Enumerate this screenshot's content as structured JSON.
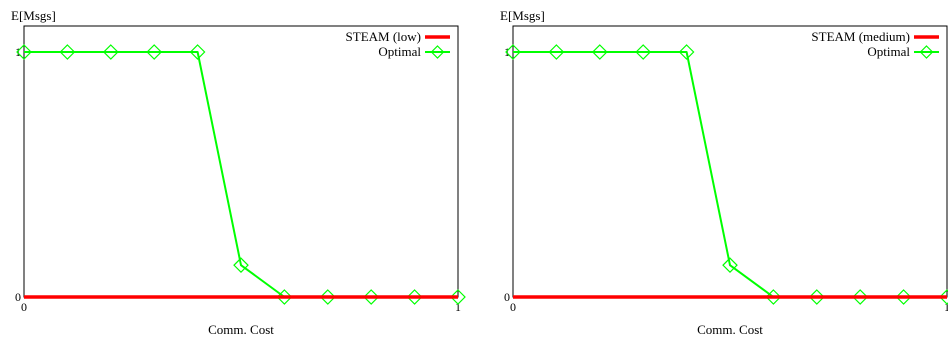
{
  "chart_data": [
    {
      "type": "line",
      "ylabel": "E[Msgs]",
      "xlabel": "Comm. Cost",
      "xlim": [
        0,
        1
      ],
      "ylim": [
        0,
        1
      ],
      "x_ticks": [
        "0",
        "1"
      ],
      "y_ticks": [
        "0",
        "1"
      ],
      "legend_position": "top-right",
      "grid": false,
      "series": [
        {
          "name": "STEAM (low)",
          "color": "#ff0000",
          "marker": "none",
          "x": [
            0,
            1
          ],
          "y": [
            0,
            0
          ]
        },
        {
          "name": "Optimal",
          "color": "#00ff00",
          "marker": "diamond",
          "x": [
            0,
            0.1,
            0.2,
            0.3,
            0.4,
            0.5,
            0.6,
            0.7,
            0.8,
            0.9,
            1.0
          ],
          "y": [
            1,
            1,
            1,
            1,
            1,
            0.13,
            0,
            0,
            0,
            0,
            0
          ]
        }
      ]
    },
    {
      "type": "line",
      "ylabel": "E[Msgs]",
      "xlabel": "Comm. Cost",
      "xlim": [
        0,
        1
      ],
      "ylim": [
        0,
        1
      ],
      "x_ticks": [
        "0",
        "1"
      ],
      "y_ticks": [
        "0",
        "1"
      ],
      "legend_position": "top-right",
      "grid": false,
      "series": [
        {
          "name": "STEAM (medium)",
          "color": "#ff0000",
          "marker": "none",
          "x": [
            0,
            1
          ],
          "y": [
            0,
            0
          ]
        },
        {
          "name": "Optimal",
          "color": "#00ff00",
          "marker": "diamond",
          "x": [
            0,
            0.1,
            0.2,
            0.3,
            0.4,
            0.5,
            0.6,
            0.7,
            0.8,
            0.9,
            1.0
          ],
          "y": [
            1,
            1,
            1,
            1,
            1,
            0.13,
            0,
            0,
            0,
            0,
            0
          ]
        }
      ]
    }
  ]
}
